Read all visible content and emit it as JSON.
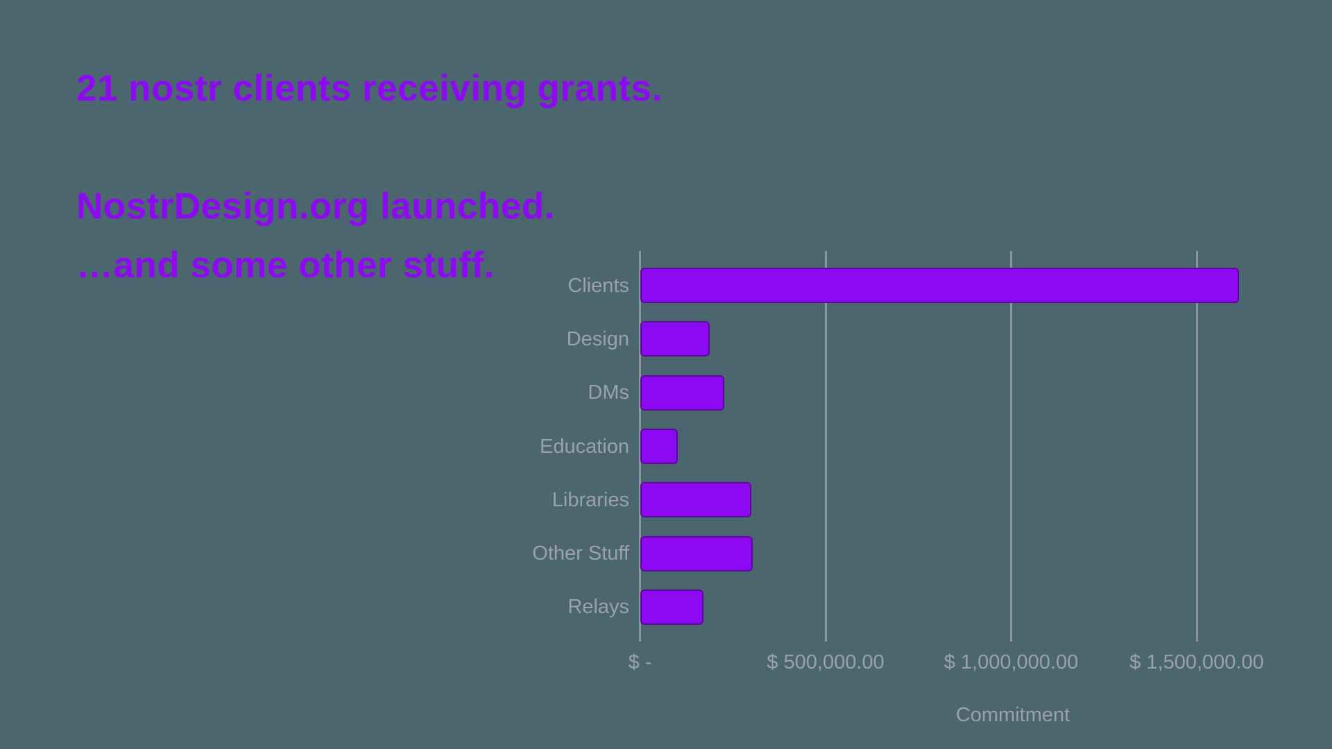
{
  "slide": {
    "background_color": "#4C6670",
    "accent_color": "#8C09F2",
    "headline": "21 nostr clients receiving grants.",
    "line2": "NostrDesign.org launched.",
    "line3": "…and some other stuff."
  },
  "chart_data": {
    "type": "bar",
    "orientation": "horizontal",
    "title": "",
    "categories": [
      "Clients",
      "Design",
      "DMs",
      "Education",
      "Libraries",
      "Other Stuff",
      "Relays"
    ],
    "values": [
      1614000,
      187000,
      226000,
      101000,
      299000,
      303000,
      171000
    ],
    "xlabel": "Commitment",
    "ylabel": "",
    "xlim": [
      0,
      1790000
    ],
    "x_ticks": [
      0,
      500000,
      1000000,
      1500000
    ],
    "x_tick_labels": [
      "$ -",
      "$ 500,000.00",
      "$ 1,000,000.00",
      "$ 1,500,000.00"
    ],
    "grid": true,
    "legend": false,
    "bar_color": "#8C09F2",
    "bar_border_color": "#5A0B95",
    "gridline_color": "#8C979D",
    "label_color": "#9AA2A7"
  }
}
